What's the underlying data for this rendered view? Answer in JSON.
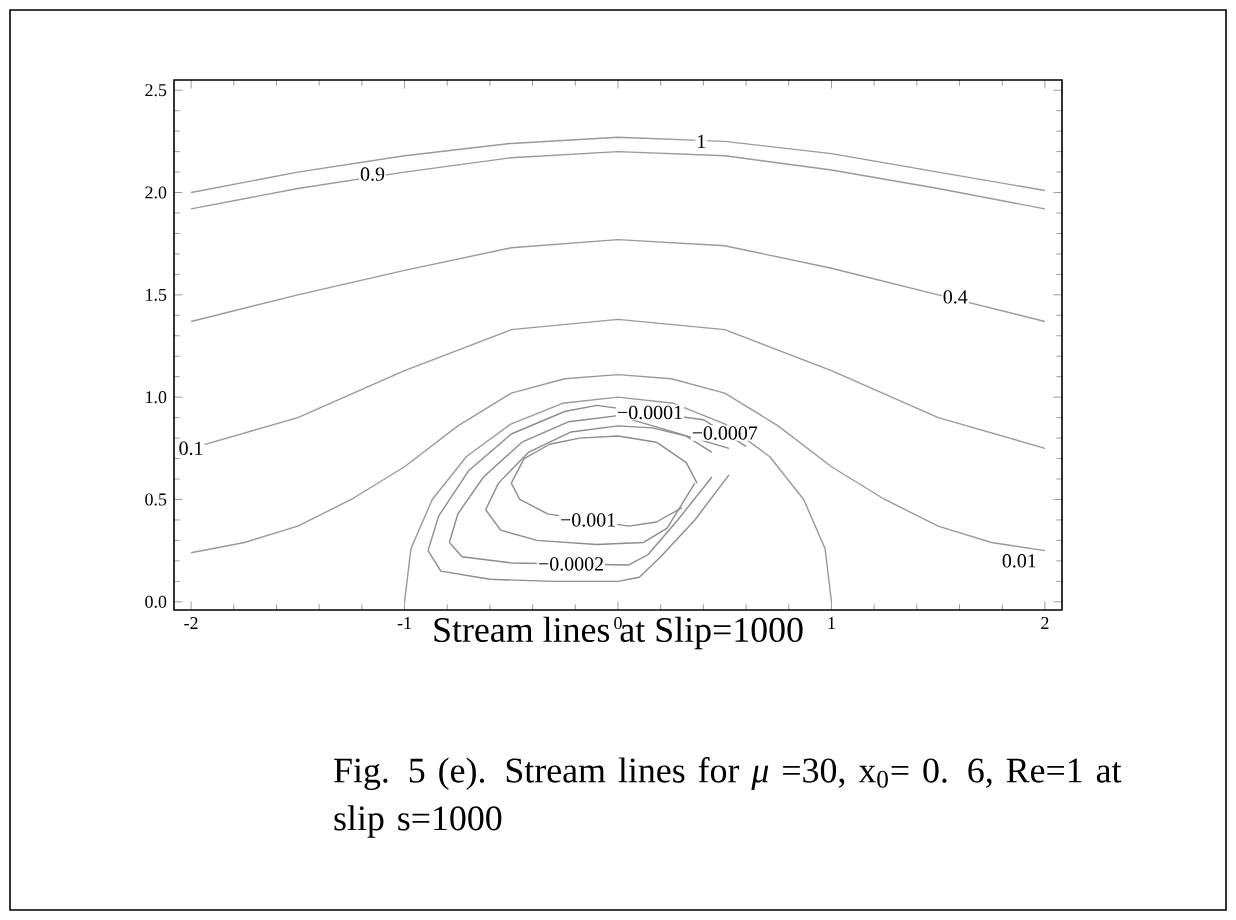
{
  "chart_data": {
    "type": "line",
    "xlabel": "Stream lines at Slip=1000",
    "xlim": [
      -2.08,
      2.08
    ],
    "ylim": [
      -0.04,
      2.55
    ],
    "xticks": [
      -2,
      -1,
      0,
      1,
      2
    ],
    "yticks": [
      {
        "value": 0,
        "label": "0.0"
      },
      {
        "value": 0.5,
        "label": "0.5"
      },
      {
        "value": 1,
        "label": "1.0"
      },
      {
        "value": 1.5,
        "label": "1.5"
      },
      {
        "value": 2,
        "label": "2.0"
      },
      {
        "value": 2.5,
        "label": "2.5"
      }
    ],
    "grid": false,
    "marker": "none",
    "line_style": "solid",
    "series": [
      {
        "color": "#9a9a9a",
        "x": [
          -2,
          -1.5,
          -1,
          -0.5,
          0,
          0.5,
          1,
          1.5,
          2
        ],
        "values": [
          2.0,
          2.1,
          2.18,
          2.24,
          2.27,
          2.25,
          2.19,
          2.1,
          2.01
        ]
      },
      {
        "color": "#9a9a9a",
        "x": [
          -2,
          -1.5,
          -1,
          -0.5,
          0,
          0.5,
          1,
          1.5,
          2
        ],
        "values": [
          1.92,
          2.02,
          2.1,
          2.17,
          2.2,
          2.18,
          2.11,
          2.02,
          1.92
        ]
      },
      {
        "color": "#9a9a9a",
        "x": [
          -2,
          -1.5,
          -1,
          -0.5,
          0,
          0.5,
          1,
          1.5,
          2
        ],
        "values": [
          1.37,
          1.5,
          1.62,
          1.73,
          1.77,
          1.74,
          1.63,
          1.5,
          1.37
        ]
      },
      {
        "color": "#9a9a9a",
        "x": [
          -2,
          -1.5,
          -1,
          -0.5,
          0,
          0.5,
          1,
          1.5,
          2
        ],
        "values": [
          0.75,
          0.9,
          1.13,
          1.33,
          1.38,
          1.33,
          1.13,
          0.9,
          0.75
        ]
      },
      {
        "color": "#9a9a9a",
        "x": [
          -2,
          -1.75,
          -1.5,
          -1.25,
          -1,
          -0.75,
          -0.5,
          -0.25,
          0,
          0.25,
          0.5,
          0.75,
          1,
          1.25,
          1.5,
          1.75,
          2
        ],
        "values": [
          0.24,
          0.29,
          0.37,
          0.5,
          0.66,
          0.86,
          1.02,
          1.09,
          1.11,
          1.09,
          1.02,
          0.86,
          0.66,
          0.5,
          0.37,
          0.29,
          0.25
        ]
      },
      {
        "color": "#9a9a9a",
        "x": [
          1,
          0.97,
          0.87,
          0.71,
          0.5,
          0.26,
          0,
          -0.26,
          -0.5,
          -0.71,
          -0.87,
          -0.97,
          -1
        ],
        "values": [
          0,
          0.26,
          0.5,
          0.71,
          0.87,
          0.97,
          1,
          0.97,
          0.87,
          0.71,
          0.5,
          0.26,
          0
        ]
      },
      {
        "color": "#8c8c8c",
        "x": [
          -0.89,
          -0.84,
          -0.7,
          -0.5,
          -0.25,
          -0.1,
          0.4,
          0.6
        ],
        "values": [
          0.25,
          0.42,
          0.64,
          0.82,
          0.93,
          0.96,
          0.89,
          0.76
        ]
      },
      {
        "color": "#8c8c8c",
        "x": [
          -0.89,
          -0.83,
          -0.6,
          -0.3,
          0.0,
          0.1,
          0.2,
          0.36,
          0.52
        ],
        "values": [
          0.25,
          0.15,
          0.11,
          0.1,
          0.1,
          0.12,
          0.22,
          0.4,
          0.62
        ]
      },
      {
        "color": "#8c8c8c",
        "x": [
          -0.79,
          -0.75,
          -0.63,
          -0.45,
          -0.23,
          0,
          0.52
        ],
        "values": [
          0.29,
          0.43,
          0.61,
          0.78,
          0.88,
          0.91,
          0.75
        ]
      },
      {
        "color": "#8c8c8c",
        "x": [
          -0.79,
          -0.73,
          -0.5,
          0.05,
          0.14,
          0.28,
          0.44
        ],
        "values": [
          0.29,
          0.22,
          0.19,
          0.18,
          0.23,
          0.4,
          0.61
        ]
      },
      {
        "color": "#8c8c8c",
        "x": [
          -0.62,
          -0.56,
          -0.42,
          -0.22,
          0,
          0.16,
          0.32,
          0.44
        ],
        "values": [
          0.45,
          0.58,
          0.73,
          0.83,
          0.86,
          0.85,
          0.81,
          0.73
        ]
      },
      {
        "color": "#8c8c8c",
        "x": [
          -0.62,
          -0.55,
          -0.38,
          -0.1,
          0.12,
          0.23,
          0.36
        ],
        "values": [
          0.45,
          0.35,
          0.3,
          0.28,
          0.29,
          0.36,
          0.58
        ]
      },
      {
        "color": "#8c8c8c",
        "x": [
          -0.5,
          -0.44,
          -0.32,
          -0.18,
          0,
          0.18,
          0.32,
          0.37
        ],
        "values": [
          0.58,
          0.7,
          0.77,
          0.8,
          0.81,
          0.78,
          0.68,
          0.58
        ]
      },
      {
        "color": "#8c8c8c",
        "x": [
          -0.5,
          -0.46,
          -0.33,
          0.05,
          0.18,
          0.3
        ],
        "values": [
          0.58,
          0.5,
          0.43,
          0.37,
          0.39,
          0.46
        ]
      }
    ],
    "annotations": [
      {
        "text": "1",
        "x": 0.39,
        "y": 2.25
      },
      {
        "text": "0.9",
        "x": -1.15,
        "y": 2.09
      },
      {
        "text": "0.4",
        "x": 1.58,
        "y": 1.49
      },
      {
        "text": "0.1",
        "x": -2.0,
        "y": 0.75
      },
      {
        "text": "0.01",
        "x": 1.88,
        "y": 0.2
      },
      {
        "text": "−0.0001",
        "x": 0.15,
        "y": 0.925
      },
      {
        "text": "−0.0007",
        "x": 0.5,
        "y": 0.825
      },
      {
        "text": "−0.001",
        "x": -0.14,
        "y": 0.4
      },
      {
        "text": "−0.0002",
        "x": -0.22,
        "y": 0.185
      },
      "Fig. 5 (e). Stream lines for *μ* =30, x$_{0}$= 0. 6, Re=1 at slip s=1000"
    ]
  }
}
